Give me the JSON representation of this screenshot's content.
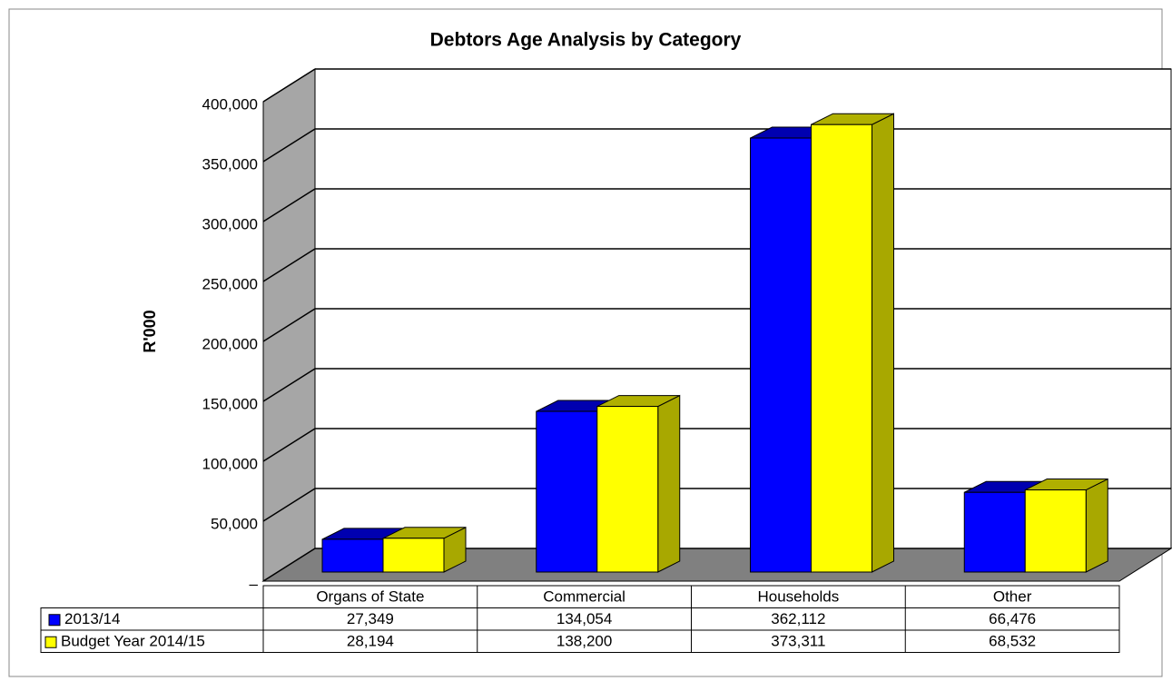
{
  "chart_data": {
    "type": "bar3d",
    "title": "Debtors Age Analysis by Category",
    "y_label": "R'000",
    "categories": [
      "Organs of State",
      "Commercial",
      "Households",
      "Other"
    ],
    "series": [
      {
        "name": "2013/14",
        "color": "#0000ff",
        "values": [
          27349,
          134054,
          362112,
          66476
        ],
        "value_labels": [
          "27,349",
          "134,054",
          "362,112",
          "66,476"
        ]
      },
      {
        "name": "Budget Year 2014/15",
        "color": "#ffff00",
        "values": [
          28194,
          138200,
          373311,
          68532
        ],
        "value_labels": [
          "28,194",
          "138,200",
          "373,311",
          "68,532"
        ]
      }
    ],
    "ylim": [
      0,
      400000
    ],
    "yticks": [
      {
        "value": 0,
        "label": "–"
      },
      {
        "value": 50000,
        "label": "50,000"
      },
      {
        "value": 100000,
        "label": "100,000"
      },
      {
        "value": 150000,
        "label": "150,000"
      },
      {
        "value": 200000,
        "label": "200,000"
      },
      {
        "value": 250000,
        "label": "250,000"
      },
      {
        "value": 300000,
        "label": "300,000"
      },
      {
        "value": 350000,
        "label": "350,000"
      },
      {
        "value": 400000,
        "label": "400,000"
      }
    ],
    "grid": true,
    "data_table": true
  }
}
